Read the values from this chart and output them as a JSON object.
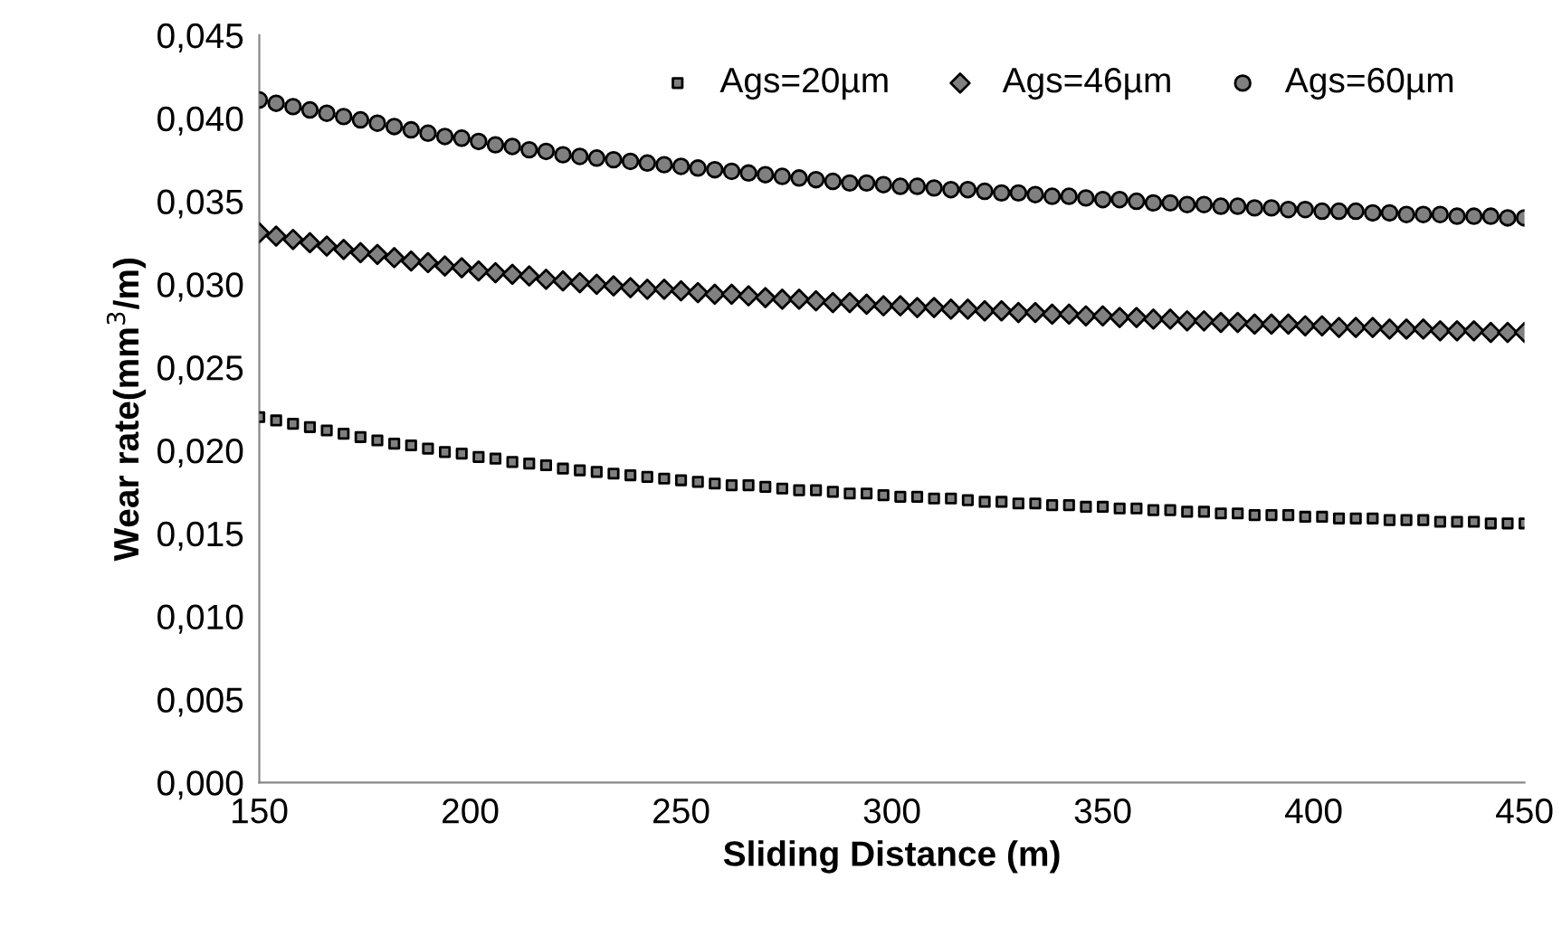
{
  "chart_data": {
    "type": "scatter",
    "xlabel": "Sliding Distance (m)",
    "ylabel": "Wear rate(mm$^{3}$/m)",
    "x": [
      150,
      154,
      158,
      162,
      166,
      170,
      174,
      178,
      182,
      186,
      190,
      194,
      198,
      202,
      206,
      210,
      214,
      218,
      222,
      226,
      230,
      234,
      238,
      242,
      246,
      250,
      254,
      258,
      262,
      266,
      270,
      274,
      278,
      282,
      286,
      290,
      294,
      298,
      302,
      306,
      310,
      314,
      318,
      322,
      326,
      330,
      334,
      338,
      342,
      346,
      350,
      354,
      358,
      362,
      366,
      370,
      374,
      378,
      382,
      386,
      390,
      394,
      398,
      402,
      406,
      410,
      414,
      418,
      422,
      426,
      430,
      434,
      438,
      442,
      446,
      450
    ],
    "series": [
      {
        "name": "Ags=20µm",
        "color": "#808080",
        "marker": "square",
        "values": [
          0.022,
          0.0218,
          0.0216,
          0.0214,
          0.0212,
          0.021,
          0.0208,
          0.0206,
          0.0204,
          0.0203,
          0.0201,
          0.0199,
          0.0198,
          0.0196,
          0.0195,
          0.0193,
          0.0192,
          0.0191,
          0.0189,
          0.0188,
          0.0187,
          0.0186,
          0.0185,
          0.0184,
          0.0183,
          0.0182,
          0.0181,
          0.018,
          0.0179,
          0.0179,
          0.0178,
          0.0177,
          0.0176,
          0.0176,
          0.0175,
          0.0174,
          0.0174,
          0.0173,
          0.0172,
          0.0172,
          0.0171,
          0.0171,
          0.017,
          0.0169,
          0.0169,
          0.0168,
          0.0168,
          0.0167,
          0.0167,
          0.0166,
          0.0166,
          0.0165,
          0.0165,
          0.0164,
          0.0164,
          0.0163,
          0.0163,
          0.0162,
          0.0162,
          0.0161,
          0.0161,
          0.0161,
          0.016,
          0.016,
          0.0159,
          0.0159,
          0.0159,
          0.0158,
          0.0158,
          0.0158,
          0.0157,
          0.0157,
          0.0157,
          0.0156,
          0.0156,
          0.0156
        ]
      },
      {
        "name": "Ags=46µm",
        "color": "#808080",
        "marker": "diamond",
        "values": [
          0.0331,
          0.0329,
          0.0327,
          0.0325,
          0.0323,
          0.0321,
          0.0319,
          0.0318,
          0.0316,
          0.0314,
          0.0313,
          0.0311,
          0.031,
          0.0308,
          0.0307,
          0.0306,
          0.0305,
          0.0303,
          0.0302,
          0.0301,
          0.03,
          0.0299,
          0.0298,
          0.0297,
          0.0297,
          0.0296,
          0.0295,
          0.0294,
          0.0294,
          0.0293,
          0.0292,
          0.0291,
          0.0291,
          0.029,
          0.0289,
          0.0289,
          0.0288,
          0.0287,
          0.0287,
          0.0286,
          0.0286,
          0.0285,
          0.0285,
          0.0284,
          0.0284,
          0.0283,
          0.0283,
          0.0282,
          0.0282,
          0.0281,
          0.0281,
          0.028,
          0.028,
          0.0279,
          0.0279,
          0.0278,
          0.0278,
          0.0277,
          0.0277,
          0.0276,
          0.0276,
          0.0276,
          0.0275,
          0.0275,
          0.0274,
          0.0274,
          0.0274,
          0.0273,
          0.0273,
          0.0273,
          0.0272,
          0.0272,
          0.0272,
          0.0271,
          0.0271,
          0.0271
        ]
      },
      {
        "name": "Ags=60µm",
        "color": "#808080",
        "marker": "circle",
        "values": [
          0.0411,
          0.0409,
          0.0407,
          0.0405,
          0.0403,
          0.0401,
          0.0399,
          0.0397,
          0.0395,
          0.0393,
          0.0391,
          0.0389,
          0.0388,
          0.0386,
          0.0384,
          0.0383,
          0.0381,
          0.038,
          0.0378,
          0.0377,
          0.0376,
          0.0375,
          0.0374,
          0.0373,
          0.0372,
          0.0371,
          0.037,
          0.0369,
          0.0368,
          0.0367,
          0.0366,
          0.0365,
          0.0364,
          0.0363,
          0.0362,
          0.0361,
          0.0361,
          0.036,
          0.0359,
          0.0359,
          0.0358,
          0.0357,
          0.0357,
          0.0356,
          0.0355,
          0.0355,
          0.0354,
          0.0353,
          0.0353,
          0.0352,
          0.0351,
          0.0351,
          0.035,
          0.0349,
          0.0349,
          0.0348,
          0.0348,
          0.0347,
          0.0347,
          0.0346,
          0.0346,
          0.0345,
          0.0345,
          0.0344,
          0.0344,
          0.0344,
          0.0343,
          0.0343,
          0.0342,
          0.0342,
          0.0342,
          0.0341,
          0.0341,
          0.0341,
          0.034,
          0.034
        ]
      }
    ],
    "xlim": [
      150,
      450
    ],
    "xticks": [
      150,
      200,
      250,
      300,
      350,
      400,
      450
    ],
    "ylim": [
      0,
      0.045
    ],
    "yticks": [
      {
        "value": 0,
        "label": "0,000"
      },
      {
        "value": 0.005,
        "label": "0,005"
      },
      {
        "value": 0.01,
        "label": "0,010"
      },
      {
        "value": 0.015,
        "label": "0,015"
      },
      {
        "value": 0.02,
        "label": "0,020"
      },
      {
        "value": 0.025,
        "label": "0,025"
      },
      {
        "value": 0.03,
        "label": "0,030"
      },
      {
        "value": 0.035,
        "label": "0,035"
      },
      {
        "value": 0.04,
        "label": "0,040"
      },
      {
        "value": 0.045,
        "label": "0,045"
      }
    ],
    "legend": "top right",
    "grid": false
  }
}
